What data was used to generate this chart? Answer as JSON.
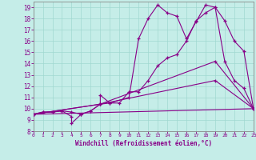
{
  "xlabel": "Windchill (Refroidissement éolien,°C)",
  "bg_color": "#c5ede8",
  "line_color": "#880088",
  "xlim": [
    0,
    23
  ],
  "ylim": [
    8,
    19.5
  ],
  "xticks": [
    0,
    1,
    2,
    3,
    4,
    5,
    6,
    7,
    8,
    9,
    10,
    11,
    12,
    13,
    14,
    15,
    16,
    17,
    18,
    19,
    20,
    21,
    22,
    23
  ],
  "yticks": [
    8,
    9,
    10,
    11,
    12,
    13,
    14,
    15,
    16,
    17,
    18,
    19
  ],
  "grid_color": "#a0d8d0",
  "line1_x": [
    0,
    1,
    2,
    3,
    4,
    4,
    5,
    6,
    7,
    7,
    8,
    10,
    11,
    12,
    13,
    14,
    15,
    16,
    17,
    18,
    19,
    20,
    21,
    22,
    23
  ],
  "line1_y": [
    9.5,
    9.7,
    9.7,
    9.8,
    9.3,
    8.7,
    9.5,
    9.8,
    10.4,
    11.2,
    10.5,
    11.0,
    16.2,
    18.0,
    19.2,
    18.5,
    18.2,
    16.2,
    17.7,
    19.2,
    19.0,
    17.8,
    16.0,
    15.1,
    10.0
  ],
  "line2_x": [
    0,
    1,
    2,
    3,
    4,
    5,
    6,
    7,
    8,
    9,
    10,
    11,
    12,
    13,
    14,
    15,
    16,
    17,
    18,
    19,
    20,
    21,
    22,
    23
  ],
  "line2_y": [
    9.5,
    9.7,
    9.7,
    9.8,
    9.7,
    9.5,
    9.8,
    10.4,
    10.5,
    10.5,
    11.5,
    11.5,
    12.5,
    13.8,
    14.5,
    14.8,
    16.0,
    17.8,
    18.5,
    19.0,
    14.2,
    12.5,
    11.8,
    10.0
  ],
  "line3_x": [
    0,
    7,
    19,
    23
  ],
  "line3_y": [
    9.5,
    10.4,
    14.2,
    10.0
  ],
  "line4_x": [
    0,
    23
  ],
  "line4_y": [
    9.5,
    10.0
  ],
  "line5_x": [
    0,
    7,
    19,
    23
  ],
  "line5_y": [
    9.5,
    10.4,
    12.5,
    10.0
  ]
}
